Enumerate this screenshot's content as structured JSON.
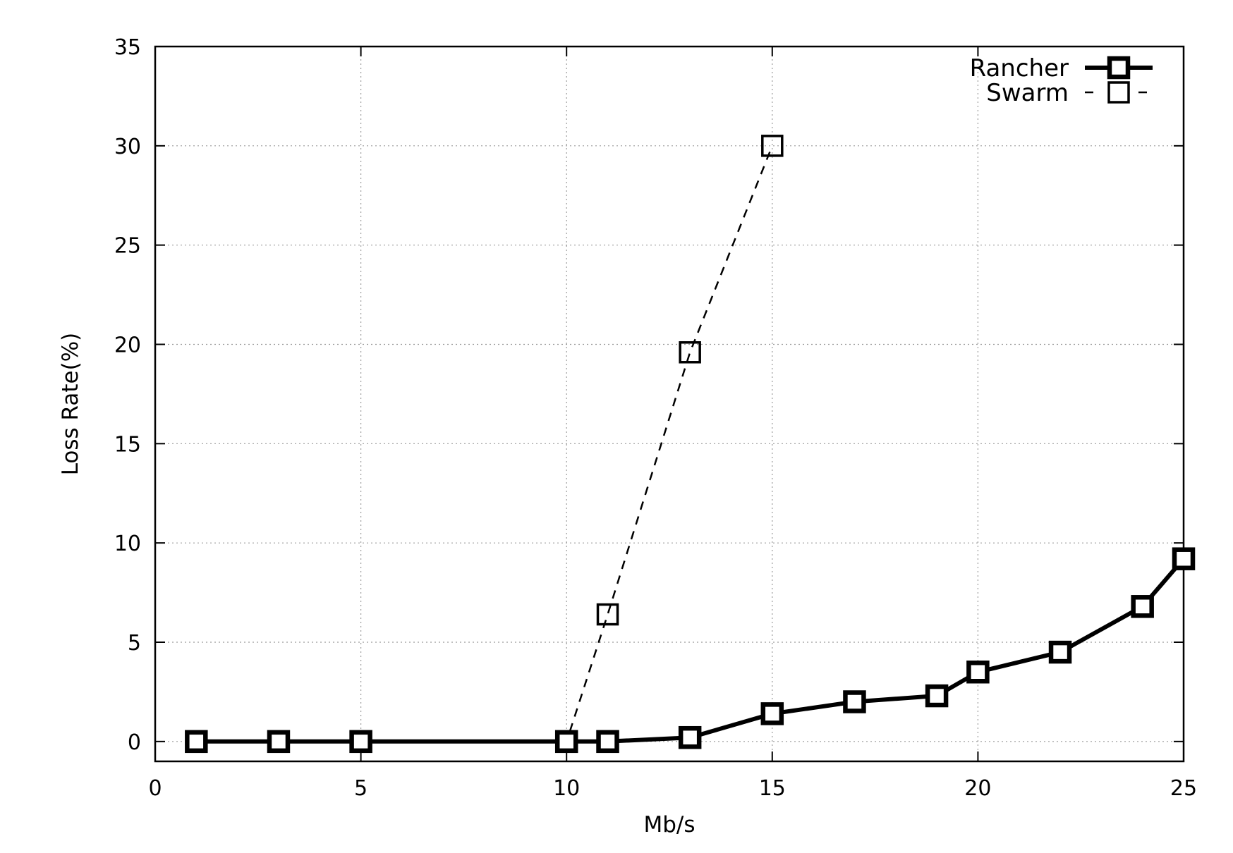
{
  "chart_data": {
    "type": "line",
    "title": "",
    "xlabel": "Mb/s",
    "ylabel": "Loss Rate(%)",
    "xlim": [
      0,
      25
    ],
    "ylim": [
      -1,
      35
    ],
    "xticks": [
      "0",
      "5",
      "10",
      "15",
      "20",
      "25"
    ],
    "yticks": [
      "0",
      "5",
      "10",
      "15",
      "20",
      "25",
      "30",
      "35"
    ],
    "grid": true,
    "legend_position": "top-right",
    "series": [
      {
        "name": "Rancher",
        "style": "solid-thick",
        "marker": "hollow-square",
        "color": "#000000",
        "x": [
          1,
          3,
          5,
          10,
          11,
          13,
          15,
          17,
          19,
          20,
          22,
          24,
          25
        ],
        "y": [
          0,
          0,
          0,
          0,
          0,
          0.2,
          1.4,
          2.0,
          2.3,
          3.5,
          4.5,
          6.8,
          9.2
        ]
      },
      {
        "name": "Swarm",
        "style": "dashed-thin",
        "marker": "hollow-square",
        "color": "#000000",
        "x": [
          10,
          11,
          13,
          15
        ],
        "y": [
          0,
          6.4,
          19.6,
          30
        ]
      }
    ]
  }
}
